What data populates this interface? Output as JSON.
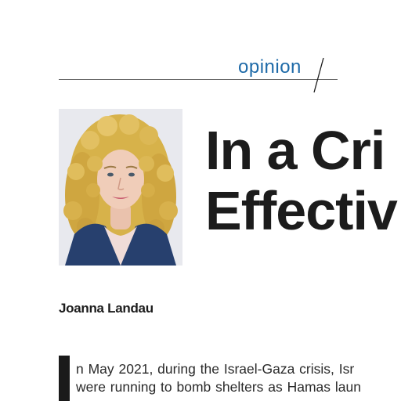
{
  "section": {
    "label": "opinion"
  },
  "article": {
    "headline_lines": [
      "In a Cri",
      "Effectiv"
    ],
    "author": "Joanna Landau",
    "body_lines": [
      "n May 2021, during the Israel-Gaza crisis, Isr",
      "were running to bomb shelters as Hamas laun"
    ]
  },
  "photo": {
    "subject": "author-portrait"
  },
  "colors": {
    "accent": "#1e6aa8",
    "text": "#1c1c1c",
    "rule": "#6a6a6a"
  }
}
